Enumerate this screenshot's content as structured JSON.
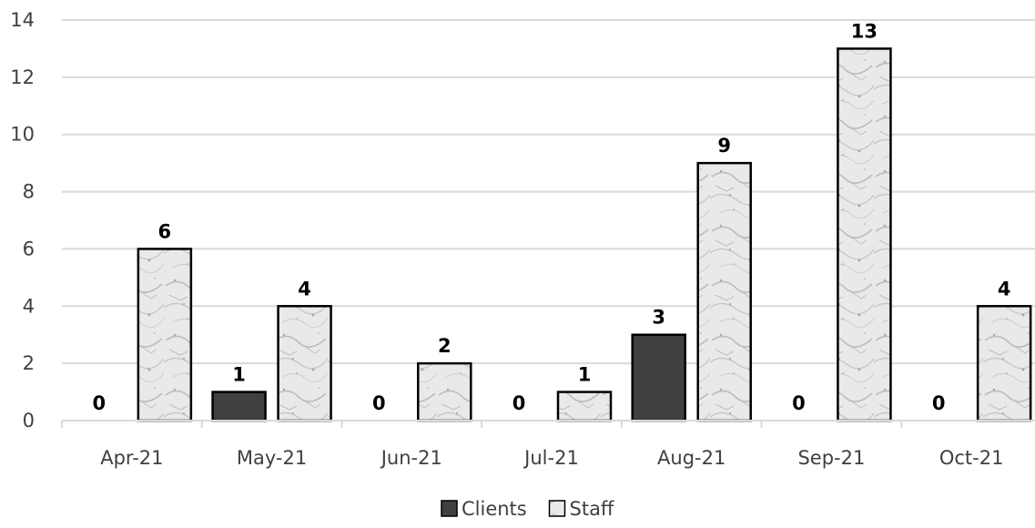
{
  "chart_data": {
    "type": "bar",
    "categories": [
      "Apr-21",
      "May-21",
      "Jun-21",
      "Jul-21",
      "Aug-21",
      "Sep-21",
      "Oct-21"
    ],
    "series": [
      {
        "name": "Clients",
        "values": [
          0,
          1,
          0,
          0,
          3,
          0,
          0
        ],
        "color": "#404040"
      },
      {
        "name": "Staff",
        "values": [
          6,
          4,
          2,
          1,
          9,
          13,
          4
        ],
        "color": "#e6e6e6",
        "pattern": "marble-texture"
      }
    ],
    "ylim": [
      0,
      14
    ],
    "y_ticks": [
      0,
      2,
      4,
      6,
      8,
      10,
      12,
      14
    ],
    "grid": true,
    "legend": "bottom-center",
    "data_labels": true,
    "title": "",
    "xlabel": "",
    "ylabel": ""
  }
}
